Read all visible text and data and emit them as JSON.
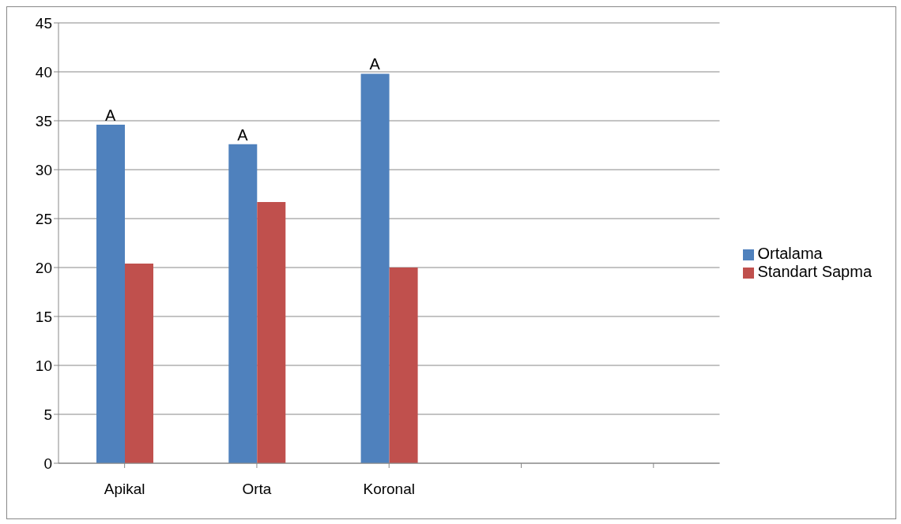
{
  "chart_data": {
    "type": "bar",
    "categories": [
      "Apikal",
      "Orta",
      "Koronal",
      null,
      null
    ],
    "series": [
      {
        "name": "Ortalama",
        "color": "#4f81bd",
        "values": [
          34.6,
          32.6,
          39.8,
          null,
          null
        ]
      },
      {
        "name": "Standart Sapma",
        "color": "#c0504d",
        "values": [
          20.4,
          26.7,
          20.0,
          null,
          null
        ]
      }
    ],
    "ylim": [
      0,
      45
    ],
    "yticks": [
      0,
      5,
      10,
      15,
      20,
      25,
      30,
      35,
      40,
      45
    ],
    "grid": "y",
    "legend": "right",
    "annotations": [
      {
        "text": "A",
        "x": "Apikal",
        "y": 34.6
      },
      {
        "text": "A",
        "x": "Orta",
        "y": 32.6
      },
      {
        "text": "A",
        "x": "Koronal",
        "y": 39.8
      }
    ]
  }
}
